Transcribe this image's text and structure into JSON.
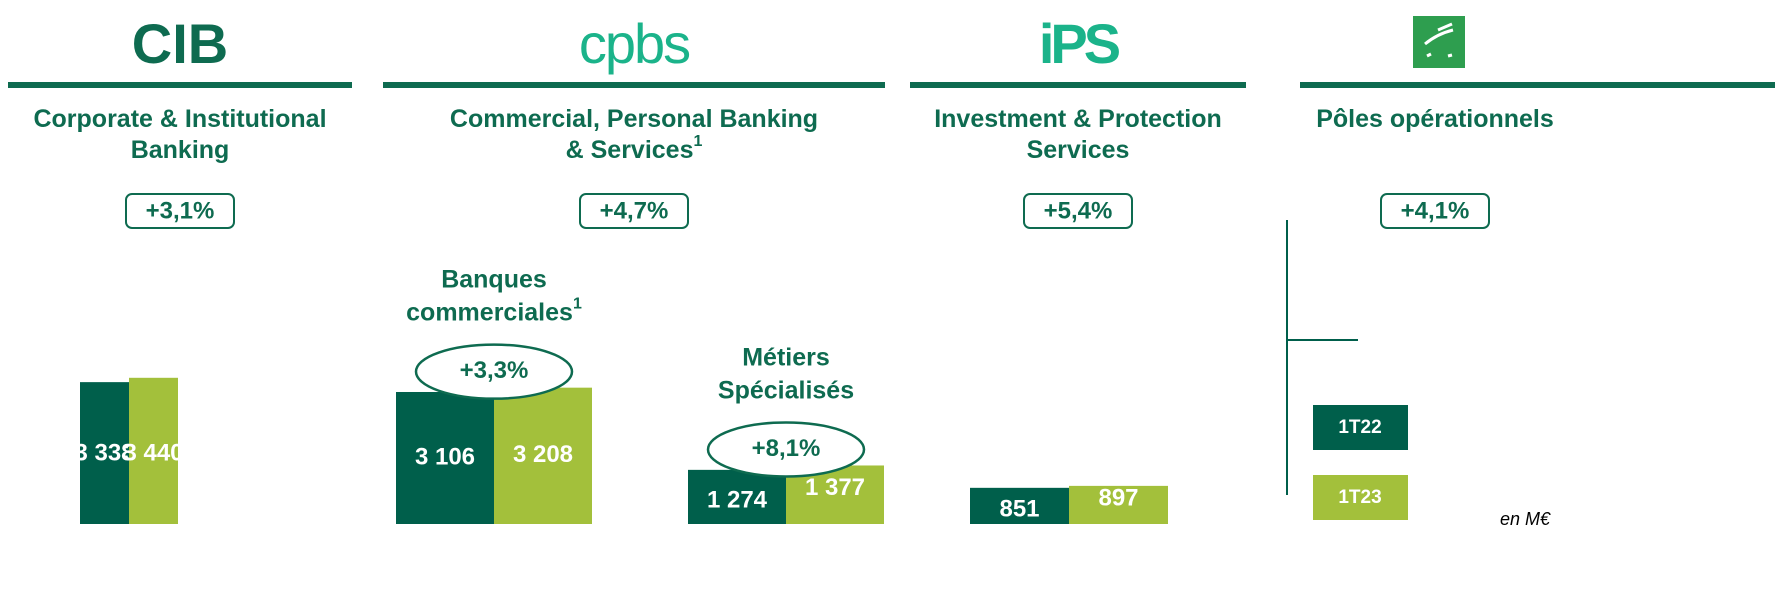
{
  "segments": [
    {
      "logo": "CIB",
      "title_lines": [
        "Corporate & Institutional",
        "Banking"
      ],
      "growth": "+3,1%",
      "groups": [
        {
          "values": [
            3338,
            3440
          ],
          "value_labels": [
            "3 338",
            "3 440"
          ]
        }
      ]
    },
    {
      "logo": "cpbs",
      "title_lines": [
        "Commercial, Personal Banking",
        "& Services"
      ],
      "title_note": "1",
      "growth": "+4,7%",
      "groups": [
        {
          "name_lines": [
            "Banques",
            "commerciales"
          ],
          "name_note": "1",
          "growth": "+3,3%",
          "values": [
            3106,
            3208
          ],
          "value_labels": [
            "3 106",
            "3 208"
          ]
        },
        {
          "name_lines": [
            "Métiers",
            "Spécialisés"
          ],
          "growth": "+8,1%",
          "values": [
            1274,
            1377
          ],
          "value_labels": [
            "1 274",
            "1 377"
          ]
        }
      ]
    },
    {
      "logo": "iPS",
      "title_lines": [
        "Investment & Protection",
        "Services"
      ],
      "growth": "+5,4%",
      "groups": [
        {
          "values": [
            851,
            897
          ]
        }
      ]
    },
    {
      "title_lines": [
        "Pôles opérationnels"
      ],
      "growth": "+4,1%",
      "groups": []
    }
  ],
  "legend": [
    {
      "label": "1T22",
      "color": "#005f4b"
    },
    {
      "label": "1T23",
      "color": "#a3c03b"
    }
  ],
  "unit": "en M€"
}
